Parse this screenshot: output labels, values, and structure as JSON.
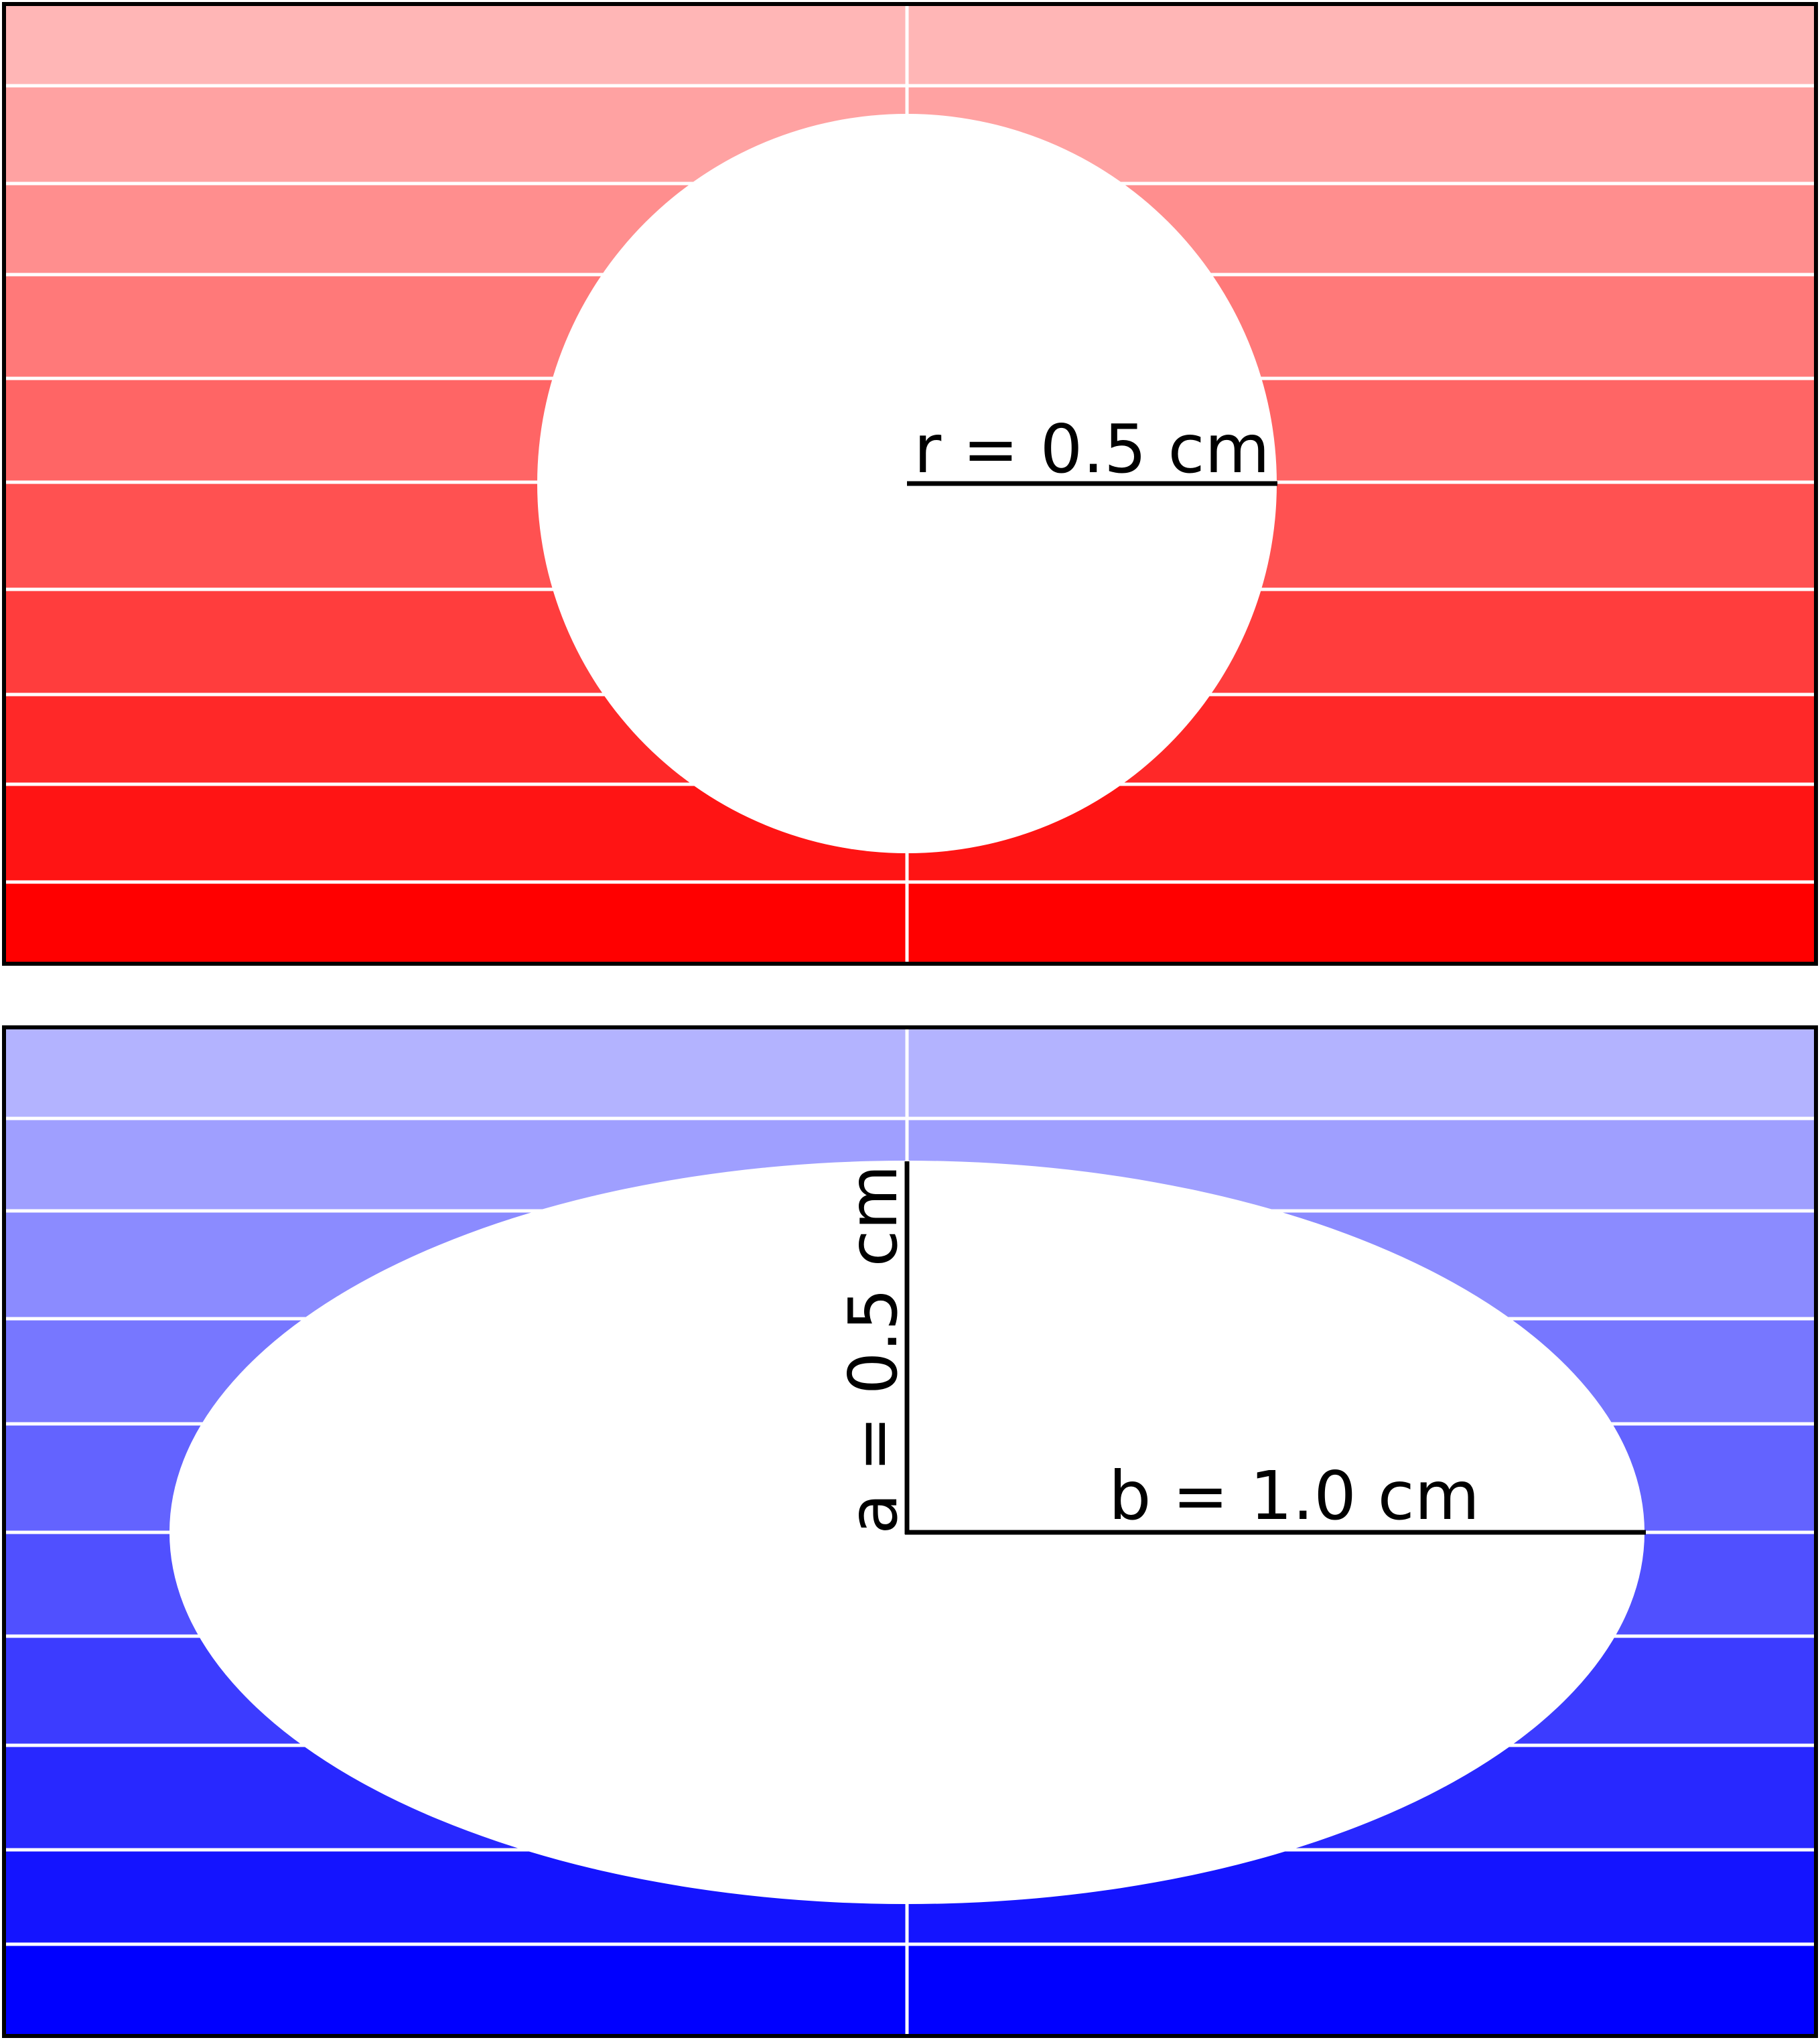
{
  "circle_panel": {
    "label": "r = 0.5 cm"
  },
  "ellipse_panel": {
    "label_a": "a = 0.5 cm",
    "label_b": "b = 1.0 cm"
  }
}
